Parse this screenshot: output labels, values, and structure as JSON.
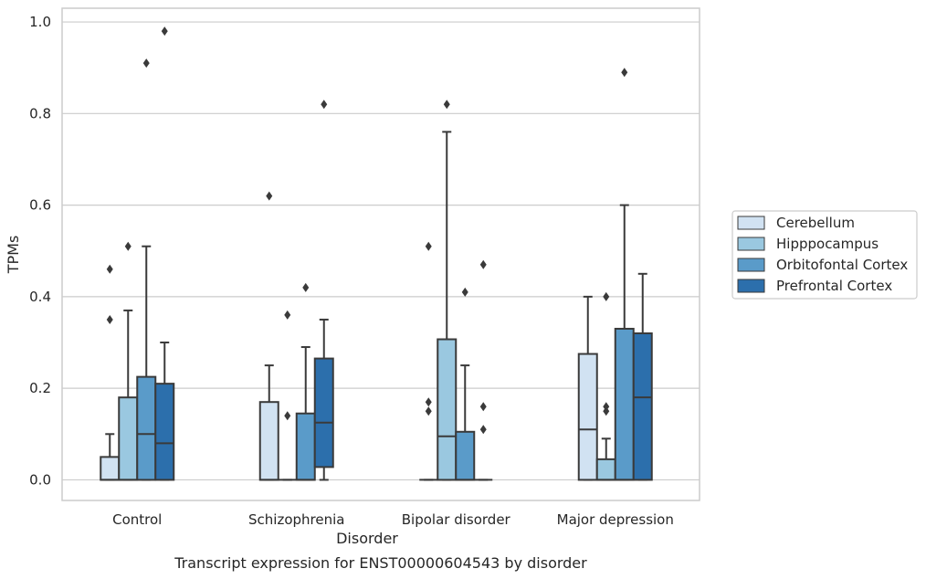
{
  "chart_data": {
    "type": "boxplot",
    "title": "",
    "caption": "Transcript expression for ENST00000604543 by disorder",
    "xlabel": "Disorder",
    "ylabel": "TPMs",
    "ylim": [
      -0.045,
      1.03
    ],
    "yticks": [
      0.0,
      0.2,
      0.4,
      0.6,
      0.8,
      1.0
    ],
    "ytick_labels": [
      "0.0",
      "0.2",
      "0.4",
      "0.6",
      "0.8",
      "1.0"
    ],
    "grid": true,
    "legend_position": "right",
    "categories": [
      "Control",
      "Schizophrenia",
      "Bipolar disorder",
      "Major depression"
    ],
    "series": [
      {
        "name": "Cerebellum",
        "color": "#d1e2f2",
        "boxes": [
          {
            "whislo": 0.0,
            "q1": 0.0,
            "med": 0.0,
            "q3": 0.05,
            "whishi": 0.1,
            "fliers": [
              0.35,
              0.46
            ]
          },
          {
            "whislo": 0.0,
            "q1": 0.0,
            "med": 0.0,
            "q3": 0.17,
            "whishi": 0.25,
            "fliers": [
              0.62
            ]
          },
          {
            "whislo": 0.0,
            "q1": 0.0,
            "med": 0.0,
            "q3": 0.0,
            "whishi": 0.0,
            "fliers": [
              0.15,
              0.17,
              0.51
            ]
          },
          {
            "whislo": 0.0,
            "q1": 0.0,
            "med": 0.11,
            "q3": 0.275,
            "whishi": 0.4,
            "fliers": []
          }
        ]
      },
      {
        "name": "Hipppocampus",
        "color": "#9ac8e0",
        "boxes": [
          {
            "whislo": 0.0,
            "q1": 0.0,
            "med": 0.0,
            "q3": 0.18,
            "whishi": 0.37,
            "fliers": [
              0.51
            ]
          },
          {
            "whislo": 0.0,
            "q1": 0.0,
            "med": 0.0,
            "q3": 0.0,
            "whishi": 0.0,
            "fliers": [
              0.14,
              0.36
            ]
          },
          {
            "whislo": 0.0,
            "q1": 0.0,
            "med": 0.095,
            "q3": 0.307,
            "whishi": 0.76,
            "fliers": [
              0.82
            ]
          },
          {
            "whislo": 0.0,
            "q1": 0.0,
            "med": 0.0,
            "q3": 0.045,
            "whishi": 0.09,
            "fliers": [
              0.15,
              0.16,
              0.4
            ]
          }
        ]
      },
      {
        "name": "Orbitofontal Cortex",
        "color": "#5a9bc9",
        "boxes": [
          {
            "whislo": 0.0,
            "q1": 0.0,
            "med": 0.1,
            "q3": 0.225,
            "whishi": 0.51,
            "fliers": [
              0.91
            ]
          },
          {
            "whislo": 0.0,
            "q1": 0.0,
            "med": 0.0,
            "q3": 0.145,
            "whishi": 0.29,
            "fliers": [
              0.42
            ]
          },
          {
            "whislo": 0.0,
            "q1": 0.0,
            "med": 0.0,
            "q3": 0.105,
            "whishi": 0.25,
            "fliers": [
              0.41
            ]
          },
          {
            "whislo": 0.0,
            "q1": 0.0,
            "med": 0.0,
            "q3": 0.33,
            "whishi": 0.6,
            "fliers": [
              0.89
            ]
          }
        ]
      },
      {
        "name": "Prefrontal Cortex",
        "color": "#2c6fac",
        "boxes": [
          {
            "whislo": 0.0,
            "q1": 0.0,
            "med": 0.08,
            "q3": 0.21,
            "whishi": 0.3,
            "fliers": [
              0.98
            ]
          },
          {
            "whislo": 0.0,
            "q1": 0.028,
            "med": 0.125,
            "q3": 0.265,
            "whishi": 0.35,
            "fliers": [
              0.82
            ]
          },
          {
            "whislo": 0.0,
            "q1": 0.0,
            "med": 0.0,
            "q3": 0.0,
            "whishi": 0.0,
            "fliers": [
              0.11,
              0.16,
              0.47
            ]
          },
          {
            "whislo": 0.0,
            "q1": 0.0,
            "med": 0.18,
            "q3": 0.32,
            "whishi": 0.45,
            "fliers": []
          }
        ]
      }
    ],
    "colors": {
      "line": "#3a3a3a",
      "grid": "#cccccc",
      "frame": "#cccccc",
      "background": "#ffffff"
    }
  }
}
